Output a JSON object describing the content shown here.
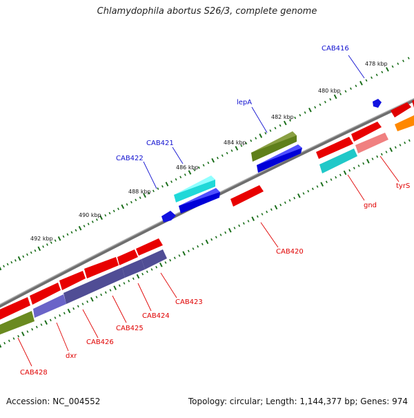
{
  "header": {
    "title": "Chlamydophila abortus S26/3, complete genome"
  },
  "footer": {
    "accession": "Accession: NC_004552",
    "summary": "Topology: circular; Length: 1,144,377 bp; Genes: 974"
  },
  "colors": {
    "forward_label": "#1010d0",
    "reverse_label": "#e00000",
    "backbone": "#808080",
    "tick": "#1a6e1a"
  },
  "kbp_labels": [
    "478 kbp",
    "480 kbp",
    "482 kbp",
    "484 kbp",
    "486 kbp",
    "488 kbp",
    "490 kbp",
    "492 kbp"
  ],
  "forward_genes": [
    "CAB416",
    "lepA",
    "CAB421",
    "CAB422"
  ],
  "reverse_genes": [
    "tyrS",
    "gnd",
    "CAB420",
    "CAB423",
    "CAB424",
    "CAB425",
    "CAB426",
    "dxr",
    "CAB428"
  ]
}
